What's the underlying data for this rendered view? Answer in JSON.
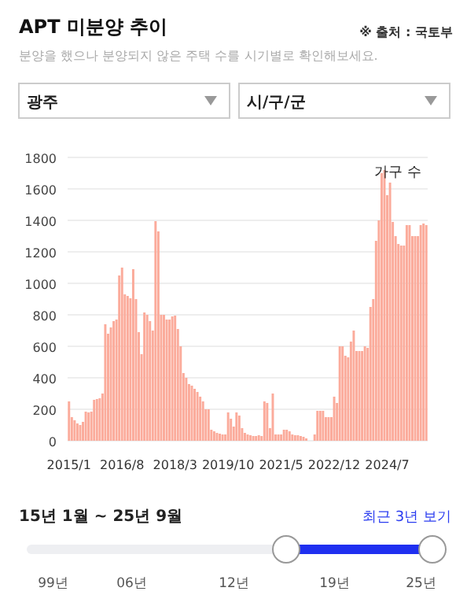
{
  "chart_data": {
    "type": "bar",
    "title": "APT 미분양 추이",
    "subtitle": "분양을 했으나 분양되지 않은 주택 수를 시기별로 확인해보세요.",
    "ylabel": "가구 수",
    "annotations": [
      "※ 출처 : 국토부",
      "광주",
      "시/구/군",
      "15년 1월 ~ 25년 9월",
      "최근 3년 보기",
      "99년",
      "06년",
      "12년",
      "19년",
      "25년"
    ],
    "categories": [
      "2015/1",
      null,
      null,
      null,
      null,
      null,
      null,
      null,
      null,
      null,
      null,
      null,
      null,
      null,
      null,
      null,
      null,
      null,
      null,
      "2016/8",
      null,
      null,
      null,
      null,
      null,
      null,
      null,
      null,
      null,
      null,
      null,
      null,
      null,
      null,
      null,
      null,
      null,
      null,
      "2018/3",
      null,
      null,
      null,
      null,
      null,
      null,
      null,
      null,
      null,
      null,
      null,
      null,
      null,
      null,
      null,
      null,
      null,
      null,
      "2019/10",
      null,
      null,
      null,
      null,
      null,
      null,
      null,
      null,
      null,
      null,
      null,
      null,
      null,
      null,
      null,
      null,
      null,
      null,
      "2021/5",
      null,
      null,
      null,
      null,
      null,
      null,
      null,
      null,
      null,
      null,
      null,
      null,
      null,
      null,
      null,
      null,
      null,
      null,
      "2022/12",
      null,
      null,
      null,
      null,
      null,
      null,
      null,
      null,
      null,
      null,
      null,
      null,
      null,
      null,
      null,
      null,
      null,
      null,
      "2024/7",
      null,
      null,
      null,
      null,
      null,
      null,
      null,
      null,
      null,
      null,
      null,
      null,
      null,
      null
    ],
    "values": [
      250,
      150,
      130,
      110,
      100,
      120,
      185,
      180,
      185,
      260,
      265,
      270,
      300,
      740,
      680,
      720,
      760,
      770,
      1050,
      1100,
      930,
      920,
      905,
      1090,
      900,
      690,
      550,
      815,
      800,
      760,
      700,
      1395,
      1330,
      800,
      800,
      770,
      770,
      790,
      795,
      710,
      600,
      430,
      400,
      360,
      350,
      330,
      310,
      280,
      250,
      200,
      200,
      70,
      60,
      50,
      45,
      40,
      40,
      180,
      140,
      90,
      180,
      160,
      80,
      50,
      40,
      35,
      30,
      30,
      35,
      30,
      250,
      240,
      80,
      300,
      40,
      40,
      40,
      70,
      70,
      60,
      40,
      35,
      35,
      30,
      25,
      15,
      0,
      0,
      40,
      190,
      190,
      190,
      150,
      150,
      150,
      280,
      240,
      600,
      600,
      540,
      530,
      630,
      700,
      570,
      570,
      570,
      600,
      590,
      850,
      900,
      1270,
      1400,
      1700,
      1720,
      1560,
      1640,
      1390,
      1300,
      1250,
      1240,
      1240,
      1370,
      1370,
      1300,
      1300,
      1300,
      1370,
      1380,
      1370
    ],
    "color": "#fbab9b",
    "ylim": [
      0,
      1800
    ],
    "yticks": [
      0,
      200,
      400,
      600,
      800,
      1000,
      1200,
      1400,
      1600,
      1800
    ],
    "grid": "y"
  }
}
